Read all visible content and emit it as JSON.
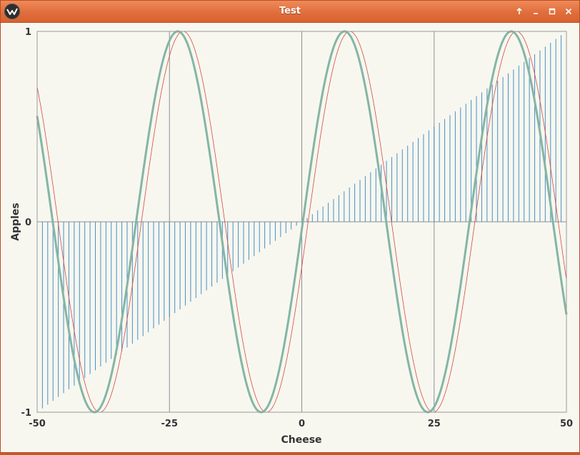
{
  "window": {
    "title": "Test",
    "app_icon": "kivy-logo-icon",
    "controls": [
      "pin-icon",
      "minimize-icon",
      "maximize-icon",
      "close-icon"
    ]
  },
  "chart_data": {
    "type": "line",
    "xlabel": "Cheese",
    "ylabel": "Apples",
    "xlim": [
      -50,
      50
    ],
    "ylim": [
      -1,
      1
    ],
    "x_ticks": [
      -50,
      -25,
      0,
      25,
      50
    ],
    "x_tick_labels": [
      "-50",
      "-25",
      "0",
      "25",
      "50"
    ],
    "y_ticks": [
      -1,
      0,
      1
    ],
    "y_tick_labels": [
      "-1",
      "0",
      "1"
    ],
    "grid": true,
    "series": [
      {
        "type": "line",
        "function": "sin",
        "amplitude": 1,
        "period": 31.5,
        "x_at_zero_rising": 1.2,
        "color": "#d64a3a",
        "stroke": 0.8
      },
      {
        "type": "line",
        "function": "sin",
        "amplitude": 1,
        "period": 31.5,
        "x_at_zero_rising": 0.2,
        "color": "#85b5a5",
        "stroke": 3
      },
      {
        "type": "stem",
        "function": "linear",
        "slope": 0.02,
        "intercept": 0,
        "step": 1,
        "color": "#4a8fc2",
        "stroke": 1
      }
    ]
  }
}
